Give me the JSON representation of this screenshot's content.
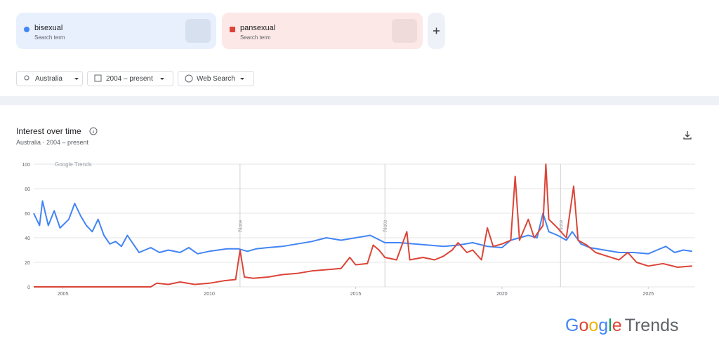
{
  "terms": [
    {
      "name": "bisexual",
      "sub": "Search term"
    },
    {
      "name": "pansexual",
      "sub": "Search term"
    }
  ],
  "filters": [
    "Australia",
    "2004 – present",
    "Web Search"
  ],
  "logo": {
    "brand": "Google",
    "product": "Trends"
  },
  "chart_data": {
    "type": "line",
    "title": "Interest over time",
    "subtitle": "Australia · 2004 – present",
    "watermark": "Google Trends",
    "xlim": [
      2004,
      2026.6
    ],
    "xticks": [
      2005,
      2010,
      2015,
      2020,
      2025
    ],
    "ylim": [
      0,
      100
    ],
    "yticks": [
      0,
      20,
      40,
      60,
      80,
      100
    ],
    "grid": true,
    "annotations": [
      {
        "x": 2011.05,
        "label": "Note"
      },
      {
        "x": 2016.0,
        "label": "Note"
      },
      {
        "x": 2022.0,
        "label": "Note"
      }
    ],
    "series": [
      {
        "name": "bisexual",
        "color": "#4285f4",
        "x": [
          2004.0,
          2004.2,
          2004.3,
          2004.5,
          2004.7,
          2004.9,
          2005.2,
          2005.4,
          2005.6,
          2005.8,
          2006.0,
          2006.2,
          2006.4,
          2006.6,
          2006.8,
          2007.0,
          2007.2,
          2007.4,
          2007.6,
          2007.8,
          2008.0,
          2008.3,
          2008.6,
          2009.0,
          2009.3,
          2009.6,
          2010.0,
          2010.3,
          2010.6,
          2011.0,
          2011.3,
          2011.6,
          2012.0,
          2012.5,
          2013.0,
          2013.5,
          2014.0,
          2014.5,
          2015.0,
          2015.5,
          2016.0,
          2016.5,
          2017.0,
          2017.5,
          2018.0,
          2018.5,
          2019.0,
          2019.5,
          2020.0,
          2020.3,
          2020.6,
          2020.9,
          2021.2,
          2021.4,
          2021.6,
          2021.9,
          2022.2,
          2022.4,
          2022.7,
          2023.0,
          2023.5,
          2024.0,
          2024.5,
          2025.0,
          2025.3,
          2025.6,
          2025.9,
          2026.2,
          2026.5
        ],
        "values": [
          60,
          50,
          70,
          50,
          62,
          48,
          55,
          68,
          58,
          50,
          45,
          55,
          42,
          35,
          37,
          33,
          42,
          35,
          28,
          30,
          32,
          28,
          30,
          28,
          32,
          27,
          29,
          30,
          31,
          31,
          29,
          31,
          32,
          33,
          35,
          37,
          40,
          38,
          40,
          42,
          36,
          36,
          35,
          34,
          33,
          34,
          36,
          33,
          32,
          38,
          40,
          42,
          40,
          60,
          45,
          42,
          38,
          45,
          35,
          32,
          30,
          28,
          28,
          27,
          30,
          33,
          28,
          30,
          29
        ]
      },
      {
        "name": "pansexual",
        "color": "#db4437",
        "x": [
          2004.0,
          2005.0,
          2006.0,
          2007.0,
          2008.0,
          2008.2,
          2008.6,
          2009.0,
          2009.5,
          2010.0,
          2010.5,
          2010.9,
          2011.05,
          2011.2,
          2011.5,
          2012.0,
          2012.5,
          2013.0,
          2013.5,
          2014.0,
          2014.5,
          2014.8,
          2015.0,
          2015.4,
          2015.6,
          2015.8,
          2016.0,
          2016.4,
          2016.75,
          2016.85,
          2017.3,
          2017.7,
          2018.0,
          2018.3,
          2018.5,
          2018.8,
          2019.0,
          2019.3,
          2019.5,
          2019.7,
          2020.0,
          2020.3,
          2020.45,
          2020.6,
          2020.9,
          2021.1,
          2021.4,
          2021.5,
          2021.6,
          2021.9,
          2022.2,
          2022.45,
          2022.6,
          2022.9,
          2023.2,
          2023.6,
          2024.0,
          2024.3,
          2024.6,
          2025.0,
          2025.5,
          2026.0,
          2026.5
        ],
        "values": [
          0,
          0,
          0,
          0,
          0,
          3,
          2,
          4,
          2,
          3,
          5,
          6,
          30,
          8,
          7,
          8,
          10,
          11,
          13,
          14,
          15,
          24,
          18,
          19,
          34,
          30,
          24,
          22,
          45,
          22,
          24,
          22,
          25,
          30,
          36,
          28,
          30,
          22,
          48,
          33,
          35,
          38,
          90,
          38,
          55,
          40,
          50,
          100,
          55,
          48,
          40,
          82,
          38,
          34,
          28,
          25,
          22,
          28,
          20,
          17,
          19,
          16,
          17
        ]
      }
    ]
  }
}
